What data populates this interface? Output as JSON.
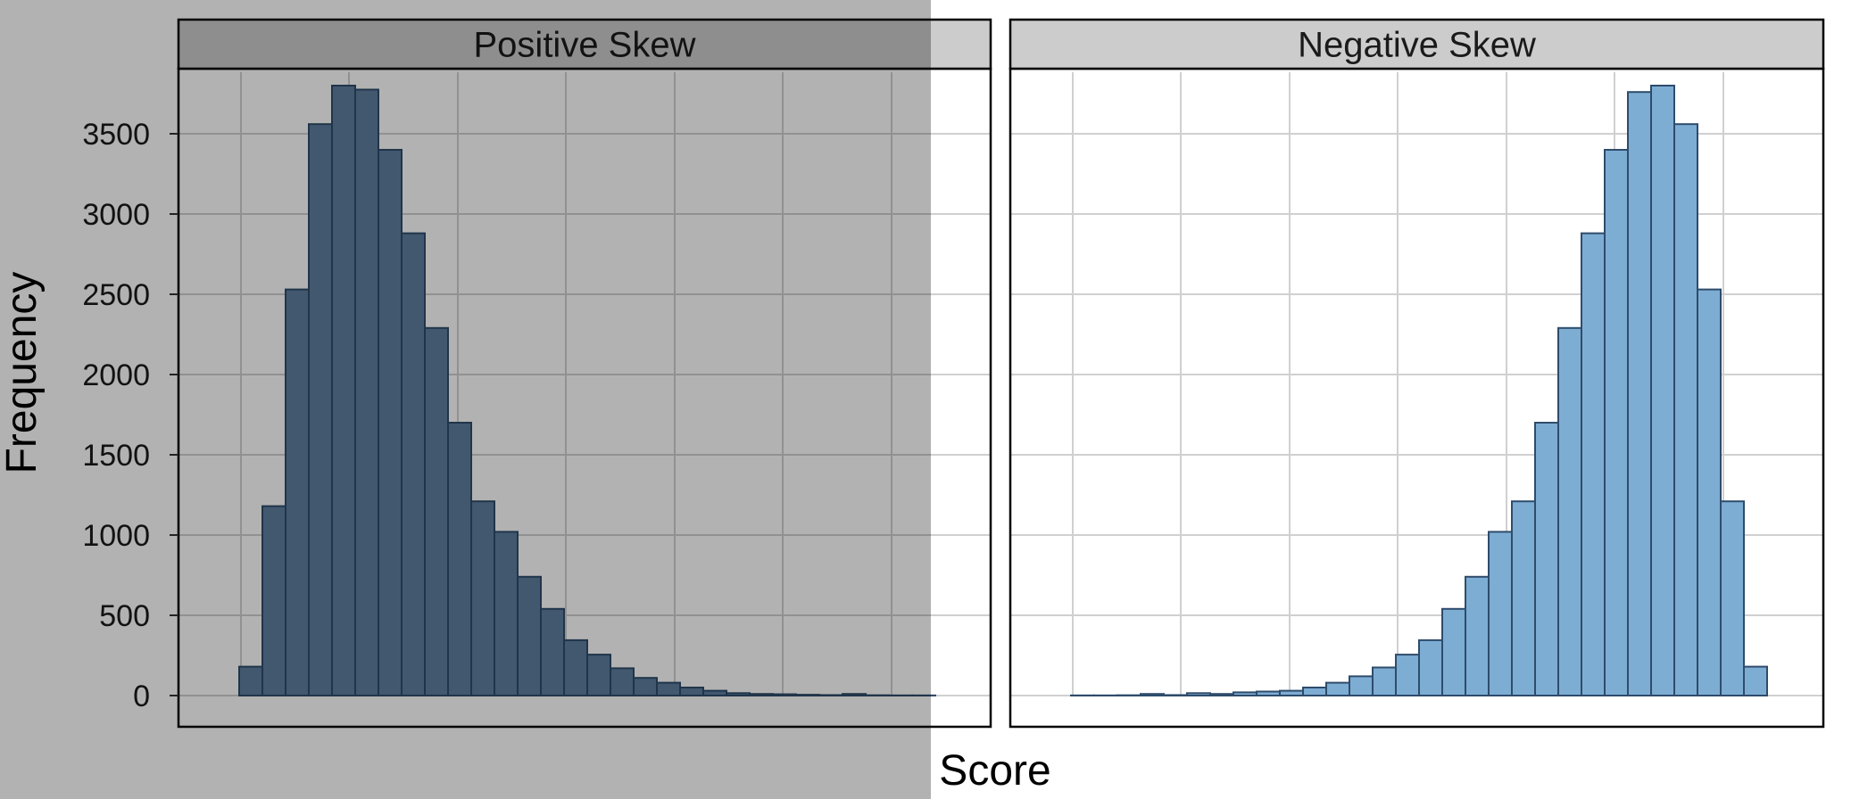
{
  "chart_data": {
    "type": "bar",
    "xlabel": "Score",
    "ylabel": "Frequency",
    "ylim": [
      0,
      3900
    ],
    "yticks": [
      0,
      500,
      1000,
      1500,
      2000,
      2500,
      3000,
      3500
    ],
    "grid": true,
    "panels": [
      {
        "title": "Positive Skew",
        "fill": "#5e7fa0",
        "stroke": "#2e4c6b",
        "values": [
          0,
          180,
          1180,
          2530,
          3560,
          3800,
          3775,
          3400,
          2880,
          2290,
          1700,
          1210,
          1020,
          740,
          540,
          345,
          255,
          170,
          110,
          80,
          50,
          30,
          15,
          10,
          8,
          5,
          3,
          10,
          2,
          1,
          1,
          0
        ]
      },
      {
        "title": "Negative Skew",
        "fill": "#7eadd4",
        "stroke": "#2e4c6b",
        "values": [
          0,
          1,
          1,
          2,
          10,
          3,
          15,
          10,
          20,
          25,
          30,
          50,
          80,
          120,
          175,
          255,
          345,
          540,
          740,
          1020,
          1210,
          1700,
          2290,
          2880,
          3400,
          3760,
          3800,
          3560,
          2530,
          1210,
          180,
          0
        ]
      }
    ]
  }
}
